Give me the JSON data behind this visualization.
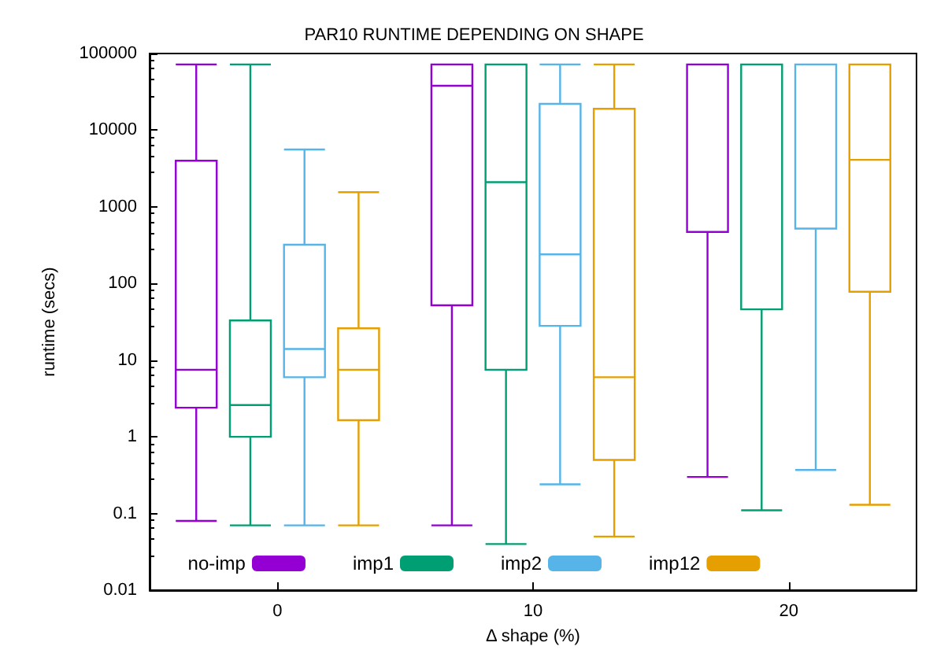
{
  "chart_data": {
    "type": "box",
    "title": "PAR10 RUNTIME DEPENDING ON SHAPE",
    "xlabel": "Δ shape (%)",
    "ylabel": "runtime (secs)",
    "categories": [
      "0",
      "10",
      "20"
    ],
    "log": "y",
    "ylim": [
      0.01,
      100000
    ],
    "yticks": [
      0.01,
      0.1,
      1,
      10,
      100,
      1000,
      10000,
      100000
    ],
    "grid": false,
    "legend": "bottom",
    "series": [
      {
        "name": "no-imp",
        "color": "#9400d3",
        "boxes": [
          {
            "low": 0.08,
            "q1": 2.4,
            "median": 7.5,
            "q3": 4000,
            "high": 72000
          },
          {
            "low": 0.07,
            "q1": 52,
            "median": 38000,
            "q3": 72000,
            "high": 72000
          },
          {
            "low": 0.3,
            "q1": 470,
            "median": 72000,
            "q3": 72000,
            "high": 72000
          }
        ]
      },
      {
        "name": "imp1",
        "color": "#009e73",
        "boxes": [
          {
            "low": 0.07,
            "q1": 1,
            "median": 2.6,
            "q3": 33,
            "high": 72000
          },
          {
            "low": 0.04,
            "q1": 7.5,
            "median": 2100,
            "q3": 72000,
            "high": 72000
          },
          {
            "low": 0.11,
            "q1": 46,
            "median": 72000,
            "q3": 72000,
            "high": 72000
          }
        ]
      },
      {
        "name": "imp2",
        "color": "#56b4e9",
        "boxes": [
          {
            "low": 0.07,
            "q1": 6,
            "median": 14,
            "q3": 320,
            "high": 5600
          },
          {
            "low": 0.24,
            "q1": 28,
            "median": 240,
            "q3": 22000,
            "high": 72000
          },
          {
            "low": 0.37,
            "q1": 520,
            "median": 72000,
            "q3": 72000,
            "high": 72000
          }
        ]
      },
      {
        "name": "imp12",
        "color": "#e69f00",
        "boxes": [
          {
            "low": 0.07,
            "q1": 1.65,
            "median": 7.5,
            "q3": 26,
            "high": 1550
          },
          {
            "low": 0.05,
            "q1": 0.5,
            "median": 6,
            "q3": 19000,
            "high": 72000
          },
          {
            "low": 0.13,
            "q1": 78,
            "median": 4100,
            "q3": 72000,
            "high": 72000
          }
        ]
      }
    ]
  }
}
